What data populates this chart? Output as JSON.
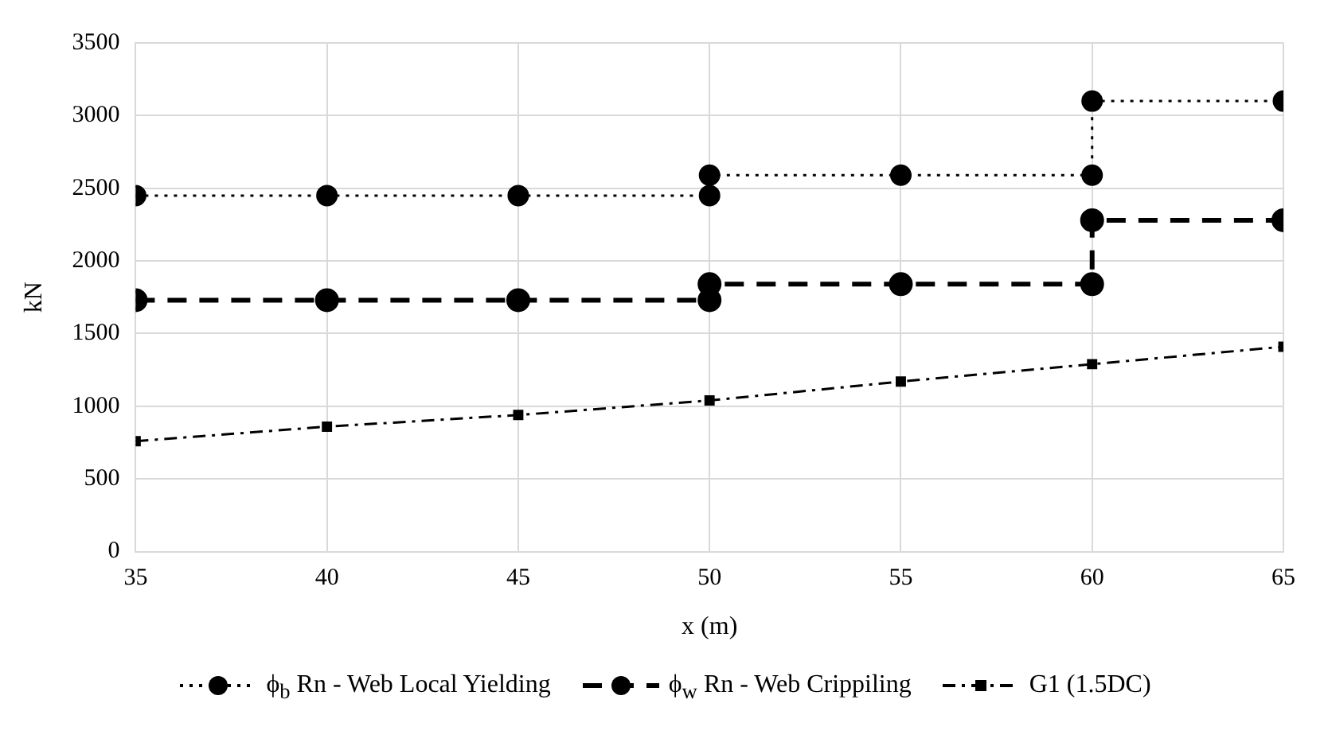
{
  "chart_data": {
    "type": "line",
    "xlabel": "x (m)",
    "ylabel": "kN",
    "xlim": [
      35,
      65
    ],
    "xticks": [
      35,
      40,
      45,
      50,
      55,
      60,
      65
    ],
    "ylim": [
      0,
      3500
    ],
    "yticks": [
      0,
      500,
      1000,
      1500,
      2000,
      2500,
      3000,
      3500
    ],
    "grid": true,
    "legend": "bottom",
    "series": [
      {
        "name": "ϕ$_{b}$ Rn - Web Local Yielding",
        "color": "#000000",
        "marker": "circle",
        "line_style": "dotted",
        "x": [
          35,
          40,
          45,
          50,
          50,
          55,
          60,
          60,
          65
        ],
        "values": [
          2450,
          2450,
          2450,
          2450,
          2590,
          2590,
          2590,
          3100,
          3100
        ]
      },
      {
        "name": "ϕ$_{w}$ Rn - Web Crippiling",
        "color": "#000000",
        "marker": "circle",
        "line_style": "dashed",
        "x": [
          35,
          40,
          45,
          50,
          50,
          55,
          60,
          60,
          65
        ],
        "values": [
          1730,
          1730,
          1730,
          1730,
          1840,
          1840,
          1840,
          2280,
          2280
        ]
      },
      {
        "name": "G1 (1.5DC)",
        "color": "#000000",
        "marker": "square",
        "line_style": "dashdot",
        "x": [
          35,
          40,
          45,
          50,
          55,
          60,
          65
        ],
        "values": [
          760,
          860,
          940,
          1040,
          1170,
          1290,
          1410
        ]
      }
    ]
  }
}
